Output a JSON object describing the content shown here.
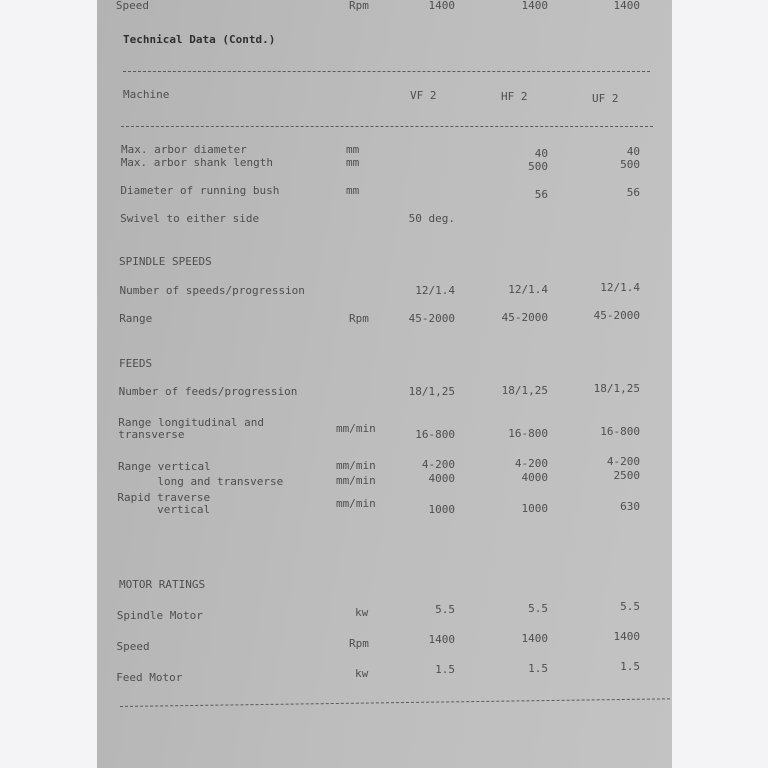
{
  "title": "Technical Data (Contd.)",
  "header": {
    "label": "Machine",
    "columns": [
      "VF 2",
      "HF 2",
      "UF 2"
    ]
  },
  "rows": [
    {
      "label": "Max. arbor diameter",
      "unit": "mm",
      "values": [
        "",
        "40",
        "40"
      ]
    },
    {
      "label": "Max. arbor shank length",
      "unit": "mm",
      "values": [
        "",
        "500",
        "500"
      ]
    },
    {
      "label": "Diameter of running bush",
      "unit": "mm",
      "values": [
        "",
        "56",
        "56"
      ]
    },
    {
      "label": "Swivel to either side",
      "unit": "",
      "values": [
        "50 deg.",
        "",
        ""
      ]
    },
    {
      "section": "SPINDLE SPEEDS"
    },
    {
      "label": "Number of speeds/progression",
      "unit": "",
      "values": [
        "12/1.4",
        "12/1.4",
        "12/1.4"
      ]
    },
    {
      "label": "Range",
      "unit": "Rpm",
      "values": [
        "45-2000",
        "45-2000",
        "45-2000"
      ]
    },
    {
      "section": "FEEDS"
    },
    {
      "label": "Number of feeds/progression",
      "unit": "",
      "values": [
        "18/1,25",
        "18/1,25",
        "18/1,25"
      ]
    },
    {
      "label": "Range longitudinal and\ntransverse",
      "unit": "mm/min",
      "values": [
        "16-800",
        "16-800",
        "16-800"
      ]
    },
    {
      "label": "Range vertical",
      "unit": "mm/min",
      "values": [
        "4-200",
        "4-200",
        "4-200"
      ]
    },
    {
      "label": "      long and transverse",
      "unit": "mm/min",
      "values": [
        "4000",
        "4000",
        "2500"
      ]
    },
    {
      "label": "Rapid traverse\n      vertical",
      "unit": "mm/min",
      "values": [
        "1000",
        "1000",
        "630"
      ]
    },
    {
      "section": "MOTOR RATINGS"
    },
    {
      "label": "Spindle Motor",
      "unit": "kw",
      "values": [
        "5.5",
        "5.5",
        "5.5"
      ]
    },
    {
      "label": "Speed",
      "unit": "Rpm",
      "values": [
        "1400",
        "1400",
        "1400"
      ]
    },
    {
      "label": "Feed Motor",
      "unit": "kw",
      "values": [
        "1.5",
        "1.5",
        "1.5"
      ]
    },
    {
      "label": "Speed",
      "unit": "Rpm",
      "values": [
        "1400",
        "1400",
        "1400"
      ]
    }
  ]
}
